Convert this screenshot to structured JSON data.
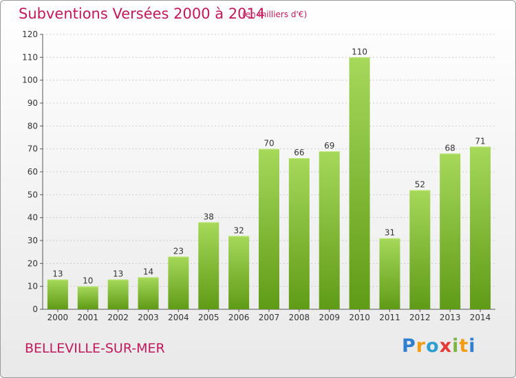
{
  "title": "Subventions Versées 2000 à 2014",
  "unit_note": "(en milliers d'€)",
  "city": "BELLEVILLE-SUR-MER",
  "logo_letters": [
    "P",
    "r",
    "o",
    "x",
    "i",
    "t",
    "i"
  ],
  "colors": {
    "title": "#c2185b",
    "bar_top": "#a6d85a",
    "bar_bottom": "#5f9b16",
    "grid": "#cccccc"
  },
  "chart_data": {
    "type": "bar",
    "categories": [
      "2000",
      "2001",
      "2002",
      "2003",
      "2004",
      "2005",
      "2006",
      "2007",
      "2008",
      "2009",
      "2010",
      "2011",
      "2012",
      "2013",
      "2014"
    ],
    "values": [
      13,
      10,
      13,
      14,
      23,
      38,
      32,
      70,
      66,
      69,
      110,
      31,
      52,
      68,
      71
    ],
    "ylim": [
      0,
      120
    ],
    "yticks": [
      0,
      10,
      20,
      30,
      40,
      50,
      60,
      70,
      80,
      90,
      100,
      110,
      120
    ],
    "grid": true,
    "xlabel": "",
    "ylabel": ""
  }
}
